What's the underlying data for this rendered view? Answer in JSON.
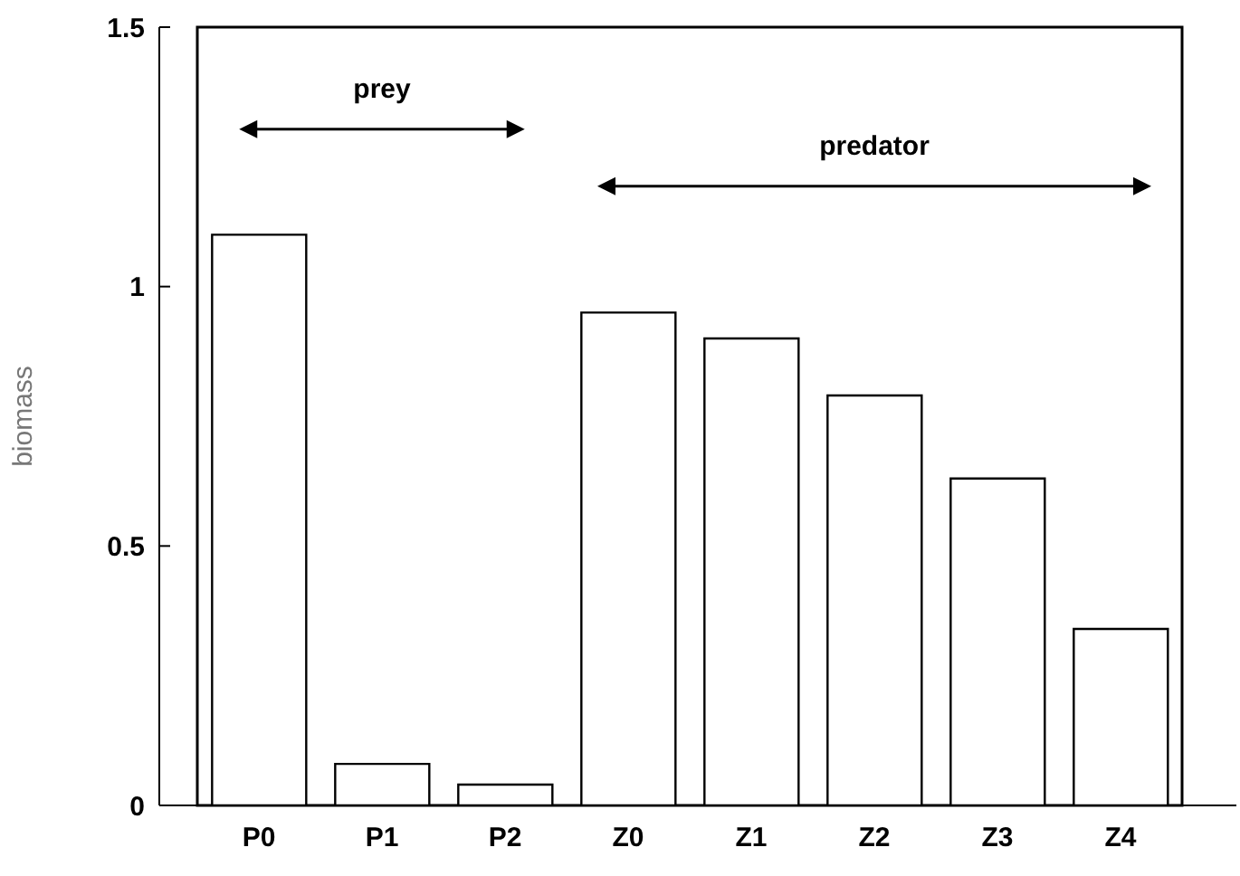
{
  "chart_data": {
    "type": "bar",
    "ylabel": "biomass",
    "categories": [
      "P0",
      "P1",
      "P2",
      "Z0",
      "Z1",
      "Z2",
      "Z3",
      "Z4"
    ],
    "values": [
      1.1,
      0.08,
      0.04,
      0.95,
      0.9,
      0.79,
      0.63,
      0.34
    ],
    "color": "#ffffff",
    "ylim": [
      0,
      1.5
    ],
    "yticks": [
      0,
      0.5,
      1,
      1.5
    ],
    "grid": false,
    "legend": false,
    "annotations": [
      "prey",
      "predator"
    ]
  }
}
